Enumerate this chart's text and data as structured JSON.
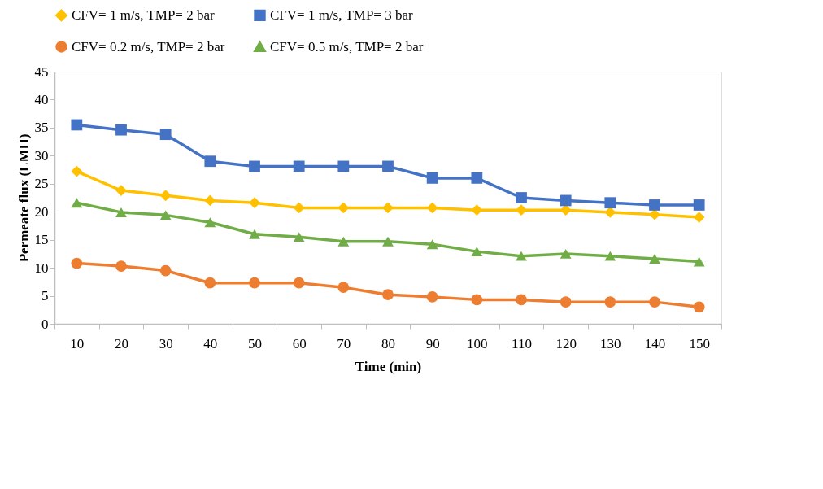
{
  "chart_data": {
    "type": "line",
    "xlabel": "Time (min)",
    "ylabel": "Permeate flux (LMH)",
    "categories": [
      "10",
      "20",
      "30",
      "40",
      "50",
      "60",
      "70",
      "80",
      "90",
      "100",
      "110",
      "120",
      "130",
      "140",
      "150"
    ],
    "series": [
      {
        "name": "CFV= 1 m/s, TMP= 2 bar",
        "color": "#ffc000",
        "marker": "diamond",
        "values": [
          27.2,
          23.8,
          22.9,
          22.0,
          21.6,
          20.7,
          20.7,
          20.7,
          20.7,
          20.3,
          20.3,
          20.3,
          19.9,
          19.5,
          19.0
        ]
      },
      {
        "name": "CFV= 1 m/s, TMP= 3 bar",
        "color": "#4472c4",
        "marker": "square",
        "values": [
          35.5,
          34.6,
          33.8,
          29.0,
          28.1,
          28.1,
          28.1,
          28.1,
          26.0,
          26.0,
          22.5,
          22.0,
          21.6,
          21.2,
          21.2
        ]
      },
      {
        "name": "CFV= 0.2 m/s, TMP= 2 bar",
        "color": "#ed7d31",
        "marker": "circle",
        "values": [
          10.8,
          10.3,
          9.5,
          7.3,
          7.3,
          7.3,
          6.5,
          5.2,
          4.8,
          4.3,
          4.3,
          3.9,
          3.9,
          3.9,
          3.0
        ]
      },
      {
        "name": "CFV= 0.5 m/s, TMP= 2 bar",
        "color": "#70ad47",
        "marker": "triangle",
        "values": [
          21.6,
          19.9,
          19.4,
          18.1,
          16.0,
          15.5,
          14.7,
          14.7,
          14.2,
          12.9,
          12.1,
          12.5,
          12.1,
          11.6,
          11.1
        ]
      }
    ],
    "ylim": [
      0,
      45
    ],
    "yticks": [
      0,
      5,
      10,
      15,
      20,
      25,
      30,
      35,
      40,
      45
    ],
    "grid": false,
    "legend": "top",
    "line_style": "solid"
  }
}
